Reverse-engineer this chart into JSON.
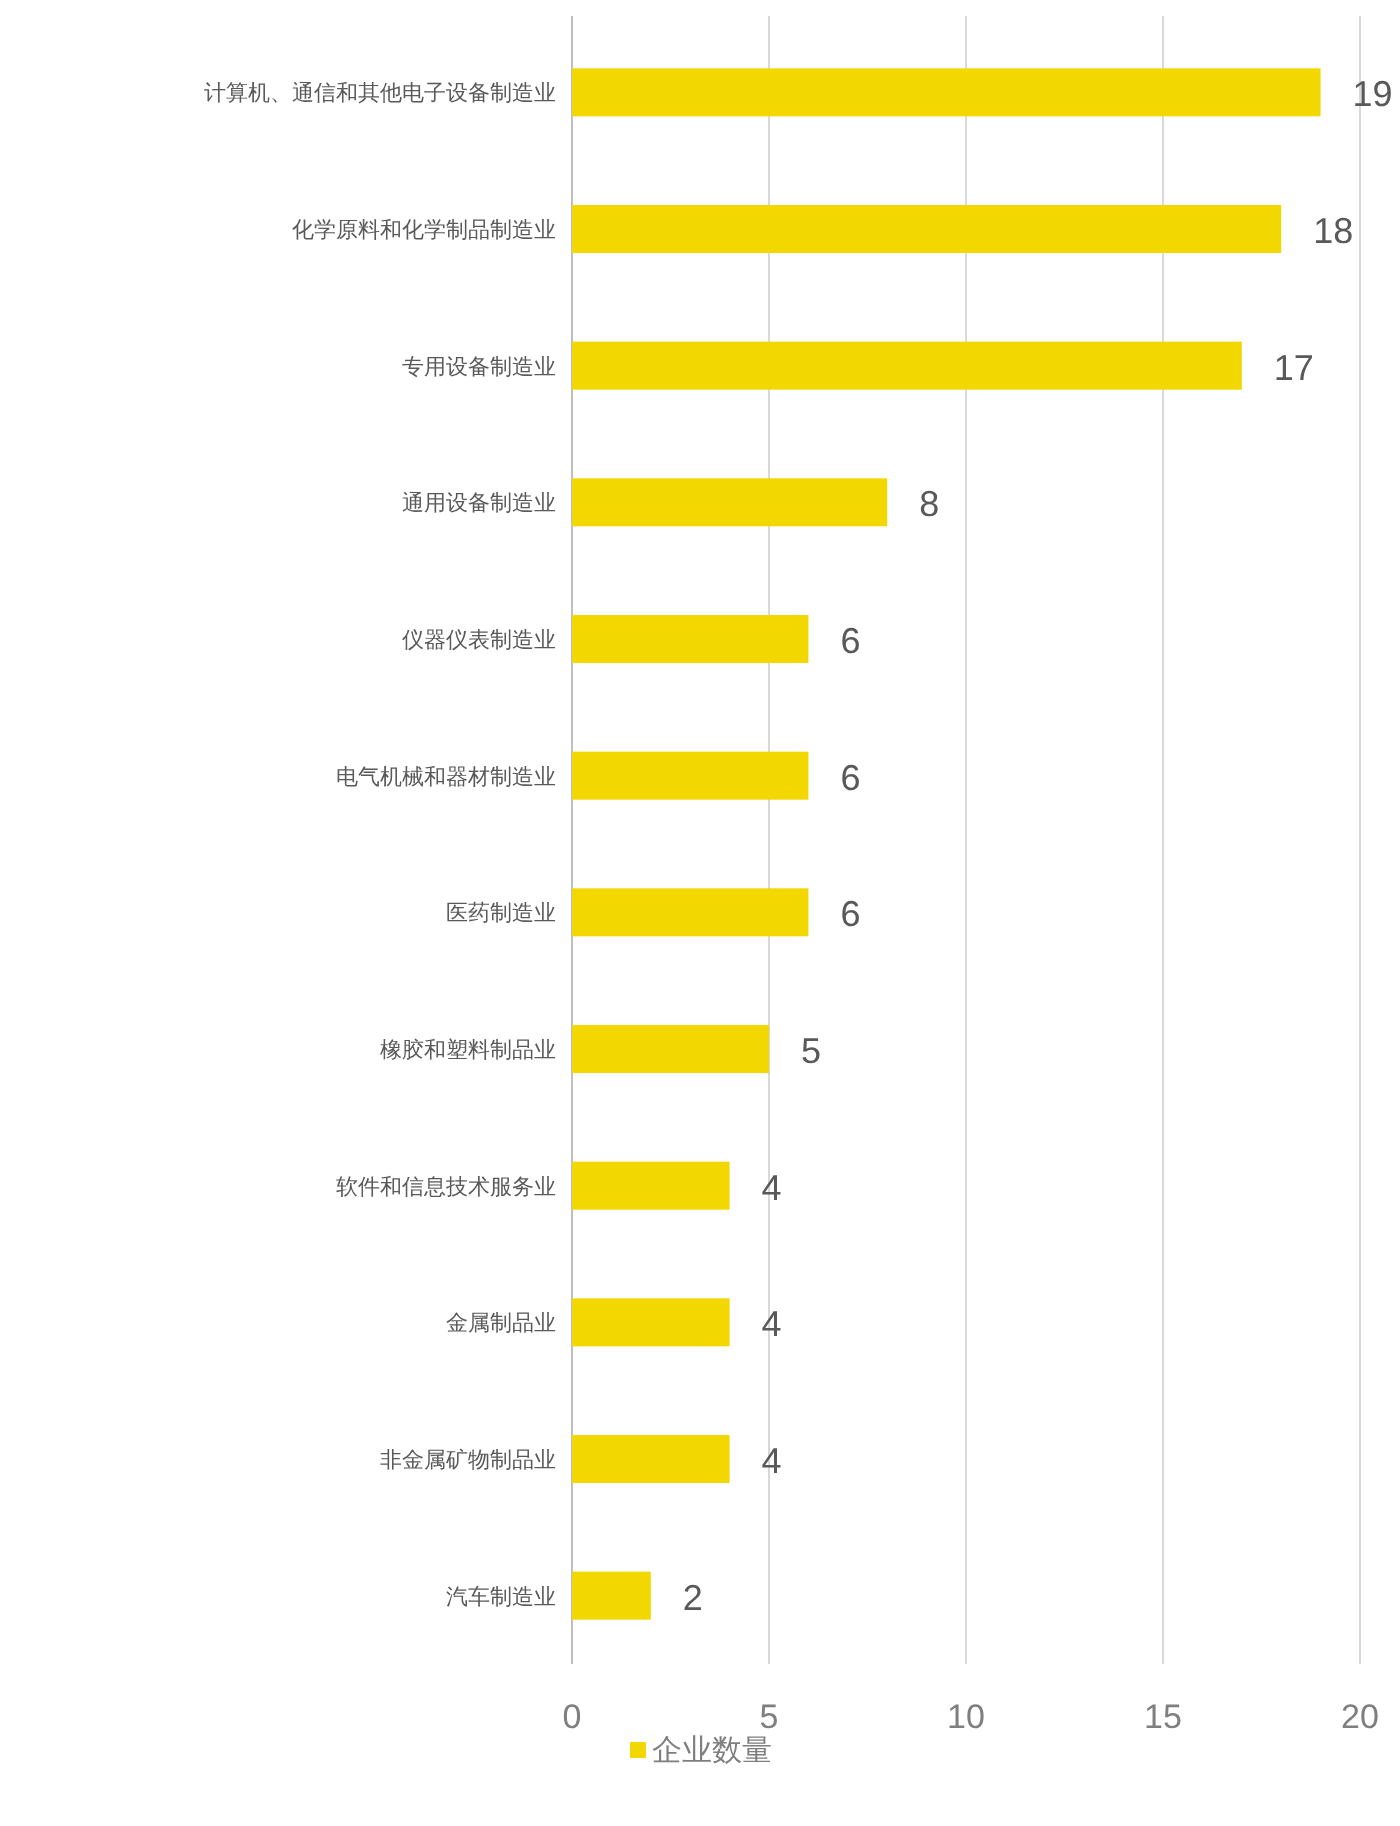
{
  "chart_data": {
    "type": "bar",
    "orientation": "horizontal",
    "categories": [
      "计算机、通信和其他电子设备制造业",
      "化学原料和化学制品制造业",
      "专用设备制造业",
      "通用设备制造业",
      "仪器仪表制造业",
      "电气机械和器材制造业",
      "医药制造业",
      "橡胶和塑料制品业",
      "软件和信息技术服务业",
      "金属制品业",
      "非金属矿物制品业",
      "汽车制造业"
    ],
    "series": [
      {
        "name": "企业数量",
        "color": "#f2d700",
        "values": [
          19,
          18,
          17,
          8,
          6,
          6,
          6,
          5,
          4,
          4,
          4,
          2
        ]
      }
    ],
    "xlim": [
      0,
      20
    ],
    "xticks": [
      0,
      5,
      10,
      15,
      20
    ],
    "grid": "x",
    "legend": "bottom",
    "data_labels": true
  }
}
